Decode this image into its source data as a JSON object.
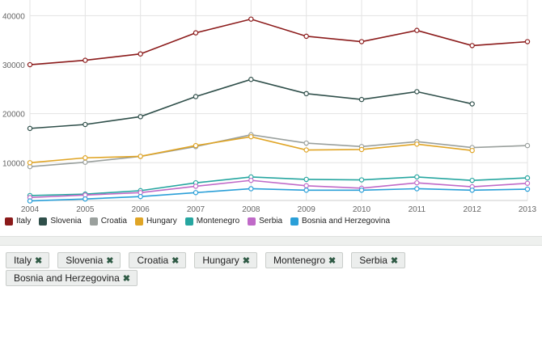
{
  "chart_data": {
    "type": "line",
    "title": "",
    "xlabel": "",
    "ylabel": "",
    "x": [
      2004,
      2005,
      2006,
      2007,
      2008,
      2009,
      2010,
      2011,
      2012,
      2013
    ],
    "yticks": [
      10000,
      20000,
      30000,
      40000
    ],
    "ylim": [
      2300,
      43200
    ],
    "grid": true,
    "legend": "bottom",
    "series": [
      {
        "name": "Italy",
        "color": "#8b1a1a",
        "values": [
          30000,
          30900,
          32200,
          36500,
          39300,
          35800,
          34700,
          37000,
          33900,
          34700
        ]
      },
      {
        "name": "Slovenia",
        "color": "#2f4f4a",
        "values": [
          17000,
          17800,
          19400,
          23500,
          27000,
          24100,
          22900,
          24500,
          22000,
          null
        ]
      },
      {
        "name": "Croatia",
        "color": "#9aa09d",
        "values": [
          9200,
          10100,
          11300,
          13300,
          15700,
          14000,
          13300,
          14300,
          13100,
          13500
        ]
      },
      {
        "name": "Hungary",
        "color": "#e0a526",
        "values": [
          10000,
          11000,
          11300,
          13500,
          15300,
          12600,
          12700,
          13800,
          12500,
          null
        ]
      },
      {
        "name": "Montenegro",
        "color": "#26a6a0",
        "values": [
          3300,
          3600,
          4300,
          5900,
          7100,
          6600,
          6500,
          7100,
          6400,
          6900
        ]
      },
      {
        "name": "Serbia",
        "color": "#c06ac8",
        "values": [
          2900,
          3400,
          3900,
          5200,
          6400,
          5300,
          4800,
          5900,
          5100,
          5800
        ]
      },
      {
        "name": "Bosnia and Herzegovina",
        "color": "#2a9fd8",
        "values": [
          2200,
          2600,
          3100,
          3900,
          4700,
          4400,
          4400,
          4700,
          4400,
          4600
        ]
      }
    ]
  },
  "tags": [
    "Italy",
    "Slovenia",
    "Croatia",
    "Hungary",
    "Montenegro",
    "Serbia",
    "Bosnia and Herzegovina"
  ],
  "remove_icon": "✖"
}
